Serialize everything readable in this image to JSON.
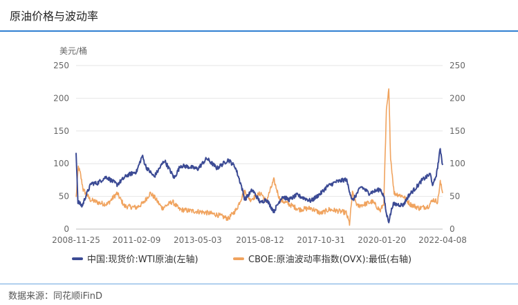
{
  "header": {
    "title": "原油价格与波动率"
  },
  "footer": {
    "source": "数据来源：同花顺iFinD"
  },
  "colors": {
    "wti": "#3b4a94",
    "ovx": "#f0a35e",
    "accent": "#2f7fd1",
    "grid": "#e6e6e6"
  },
  "chart_data": {
    "type": "line",
    "title": "原油价格与波动率",
    "ylabel_left": "美元/桶",
    "ylim_left": [
      0,
      250
    ],
    "ylim_right": [
      0,
      250
    ],
    "yticks_left": [
      "250",
      "200",
      "150",
      "100",
      "50",
      "0"
    ],
    "yticks_right": [
      "250",
      "200",
      "150",
      "100",
      "50",
      "0"
    ],
    "xticks": [
      "2008-11-25",
      "2011-02-09",
      "2013-05-03",
      "2015-08-12",
      "2017-10-31",
      "2020-01-20",
      "2022-04-08"
    ],
    "x_range": [
      "2008-11-25",
      "2022-04-08"
    ],
    "legend_position": "bottom",
    "series": [
      {
        "name": "中国:现货价:WTI原油(左轴)",
        "axis": "left",
        "points": [
          [
            "2008-11-25",
            118
          ],
          [
            "2008-12-20",
            42
          ],
          [
            "2009-02-15",
            35
          ],
          [
            "2009-04-01",
            50
          ],
          [
            "2009-06-15",
            70
          ],
          [
            "2009-09-01",
            70
          ],
          [
            "2010-01-01",
            80
          ],
          [
            "2010-05-25",
            68
          ],
          [
            "2010-10-01",
            82
          ],
          [
            "2011-02-09",
            88
          ],
          [
            "2011-04-25",
            112
          ],
          [
            "2011-06-15",
            95
          ],
          [
            "2011-10-01",
            80
          ],
          [
            "2012-02-15",
            105
          ],
          [
            "2012-06-25",
            78
          ],
          [
            "2012-09-15",
            97
          ],
          [
            "2013-01-15",
            95
          ],
          [
            "2013-05-03",
            92
          ],
          [
            "2013-09-01",
            108
          ],
          [
            "2014-01-15",
            93
          ],
          [
            "2014-06-15",
            106
          ],
          [
            "2014-09-15",
            95
          ],
          [
            "2014-12-01",
            68
          ],
          [
            "2015-01-20",
            45
          ],
          [
            "2015-05-01",
            60
          ],
          [
            "2015-08-20",
            40
          ],
          [
            "2015-11-01",
            46
          ],
          [
            "2016-02-11",
            27
          ],
          [
            "2016-06-01",
            50
          ],
          [
            "2016-09-01",
            45
          ],
          [
            "2016-12-15",
            52
          ],
          [
            "2017-06-20",
            43
          ],
          [
            "2017-10-31",
            55
          ],
          [
            "2018-01-20",
            65
          ],
          [
            "2018-05-15",
            72
          ],
          [
            "2018-10-03",
            76
          ],
          [
            "2018-12-24",
            43
          ],
          [
            "2019-04-20",
            65
          ],
          [
            "2019-08-01",
            55
          ],
          [
            "2019-12-31",
            61
          ],
          [
            "2020-02-15",
            50
          ],
          [
            "2020-03-20",
            23
          ],
          [
            "2020-04-21",
            12
          ],
          [
            "2020-06-15",
            38
          ],
          [
            "2020-11-01",
            37
          ],
          [
            "2021-01-15",
            52
          ],
          [
            "2021-04-15",
            63
          ],
          [
            "2021-07-10",
            75
          ],
          [
            "2021-10-25",
            84
          ],
          [
            "2021-12-01",
            66
          ],
          [
            "2022-01-20",
            86
          ],
          [
            "2022-03-08",
            123
          ],
          [
            "2022-03-25",
            110
          ],
          [
            "2022-04-08",
            98
          ]
        ]
      },
      {
        "name": "CBOE:原油波动率指数(OVX):最低(右轴)",
        "axis": "right",
        "points": [
          [
            "2008-11-25",
            48
          ],
          [
            "2008-12-25",
            95
          ],
          [
            "2009-01-20",
            85
          ],
          [
            "2009-03-01",
            60
          ],
          [
            "2009-06-01",
            45
          ],
          [
            "2009-10-01",
            40
          ],
          [
            "2010-01-15",
            38
          ],
          [
            "2010-05-25",
            55
          ],
          [
            "2010-09-01",
            35
          ],
          [
            "2011-02-09",
            33
          ],
          [
            "2011-05-10",
            40
          ],
          [
            "2011-08-10",
            55
          ],
          [
            "2011-10-10",
            48
          ],
          [
            "2012-01-15",
            32
          ],
          [
            "2012-06-01",
            42
          ],
          [
            "2012-09-01",
            30
          ],
          [
            "2013-01-15",
            28
          ],
          [
            "2013-05-03",
            27
          ],
          [
            "2013-09-01",
            25
          ],
          [
            "2014-01-15",
            22
          ],
          [
            "2014-06-15",
            16
          ],
          [
            "2014-10-01",
            30
          ],
          [
            "2014-12-15",
            50
          ],
          [
            "2015-01-20",
            58
          ],
          [
            "2015-04-01",
            45
          ],
          [
            "2015-08-25",
            55
          ],
          [
            "2015-11-01",
            42
          ],
          [
            "2016-02-11",
            75
          ],
          [
            "2016-05-01",
            45
          ],
          [
            "2016-09-01",
            38
          ],
          [
            "2017-01-15",
            30
          ],
          [
            "2017-06-20",
            32
          ],
          [
            "2017-10-31",
            24
          ],
          [
            "2018-02-15",
            30
          ],
          [
            "2018-06-01",
            28
          ],
          [
            "2018-10-01",
            25
          ],
          [
            "2018-11-15",
            8
          ],
          [
            "2018-12-24",
            55
          ],
          [
            "2019-03-01",
            35
          ],
          [
            "2019-06-01",
            38
          ],
          [
            "2019-09-16",
            42
          ],
          [
            "2019-12-31",
            28
          ],
          [
            "2020-02-15",
            40
          ],
          [
            "2020-03-20",
            180
          ],
          [
            "2020-04-21",
            213
          ],
          [
            "2020-05-15",
            110
          ],
          [
            "2020-07-01",
            55
          ],
          [
            "2020-11-01",
            50
          ],
          [
            "2021-02-01",
            38
          ],
          [
            "2021-06-01",
            32
          ],
          [
            "2021-10-01",
            35
          ],
          [
            "2021-12-01",
            45
          ],
          [
            "2022-02-01",
            42
          ],
          [
            "2022-03-08",
            72
          ],
          [
            "2022-04-08",
            55
          ]
        ]
      }
    ]
  }
}
